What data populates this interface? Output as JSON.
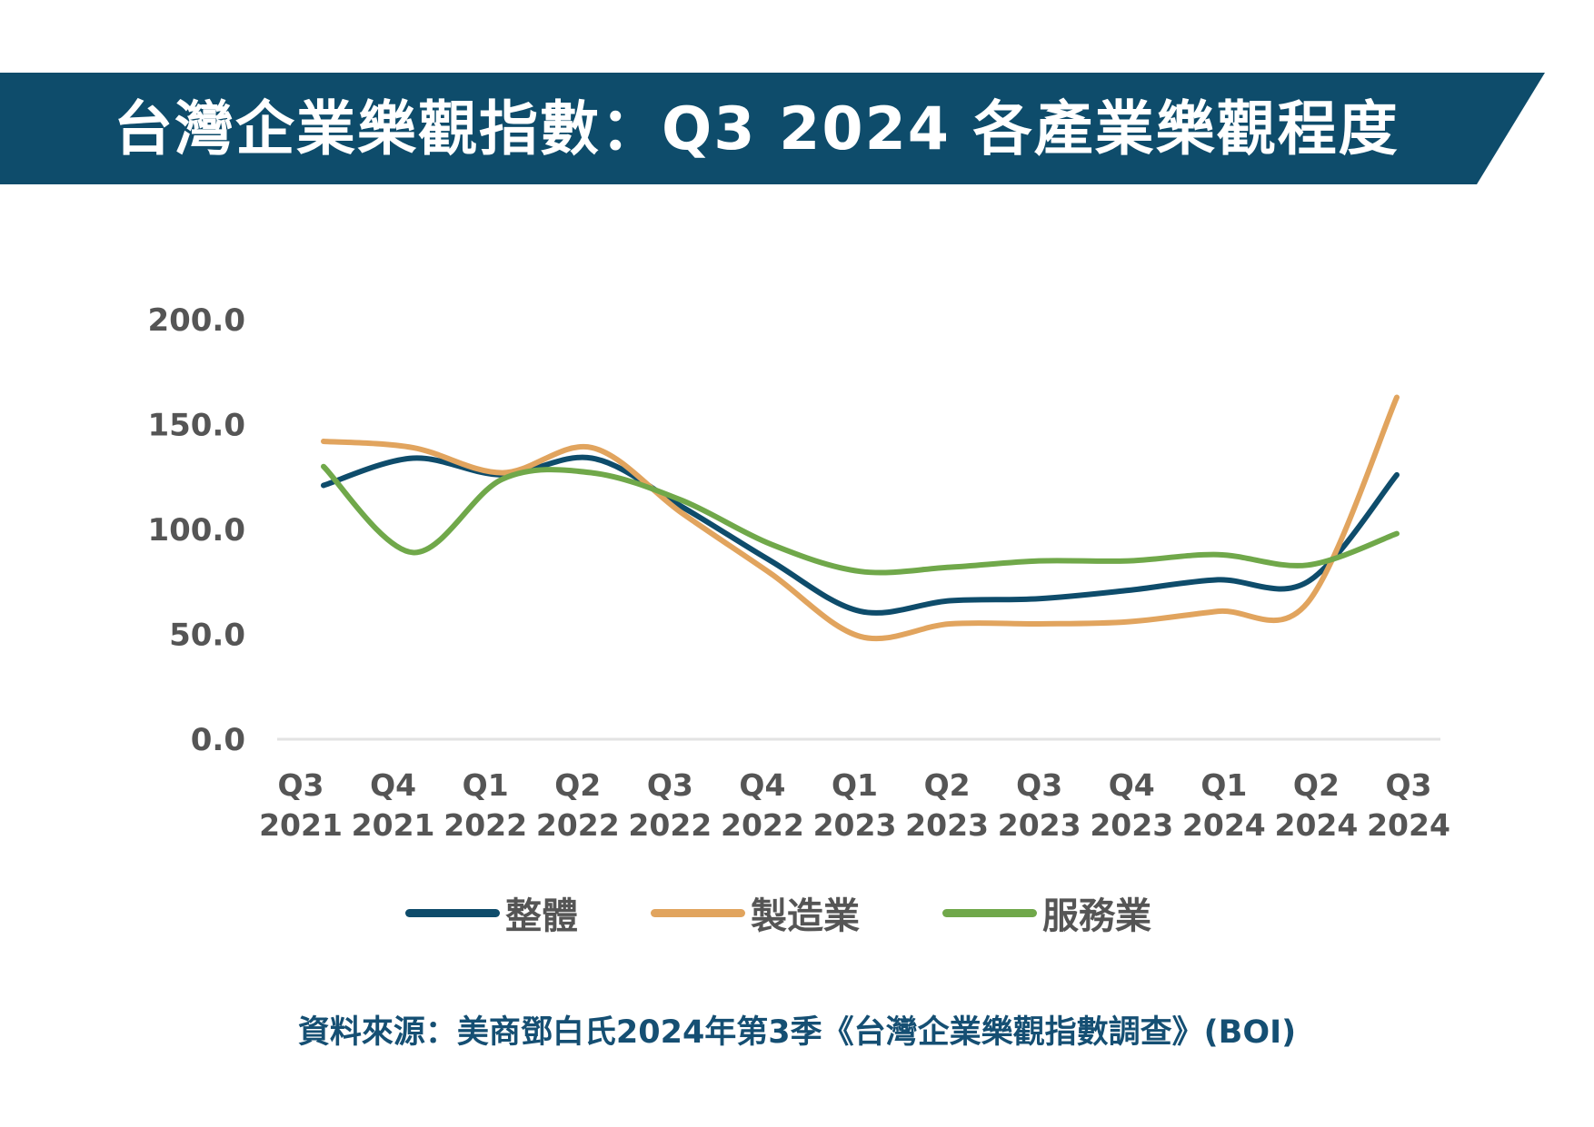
{
  "title": "台灣企業樂觀指數：Q3 2024 各產業樂觀程度",
  "source": "資料來源：美商鄧白氏2024年第3季《台灣企業樂觀指數調查》(BOI)",
  "colors": {
    "banner": "#0e4c6b",
    "overall": "#0e4c6b",
    "manufacturing": "#e1a45e",
    "services": "#70a84a",
    "axis": "#e3e3e3",
    "tick_text": "#555555",
    "source_text": "#154f73"
  },
  "chart_data": {
    "type": "line",
    "title": "台灣企業樂觀指數：Q3 2024 各產業樂觀程度",
    "categories": [
      [
        "Q3",
        "2021"
      ],
      [
        "Q4",
        "2021"
      ],
      [
        "Q1",
        "2022"
      ],
      [
        "Q2",
        "2022"
      ],
      [
        "Q3",
        "2022"
      ],
      [
        "Q4",
        "2022"
      ],
      [
        "Q1",
        "2023"
      ],
      [
        "Q2",
        "2023"
      ],
      [
        "Q3",
        "2023"
      ],
      [
        "Q4",
        "2023"
      ],
      [
        "Q1",
        "2024"
      ],
      [
        "Q2",
        "2024"
      ],
      [
        "Q3",
        "2024"
      ]
    ],
    "y_ticks": [
      "0.0",
      "50.0",
      "100.0",
      "150.0",
      "200.0"
    ],
    "ylim": [
      0,
      200
    ],
    "xlabel": "",
    "ylabel": "",
    "grid": false,
    "legend_position": "bottom",
    "smooth": true,
    "series": [
      {
        "name": "整體",
        "color_key": "overall",
        "values": [
          121,
          134,
          126,
          134,
          111,
          85,
          61,
          66,
          67,
          71,
          76,
          75,
          126
        ]
      },
      {
        "name": "製造業",
        "color_key": "manufacturing",
        "values": [
          142,
          139,
          127,
          139,
          108,
          79,
          49,
          55,
          55,
          56,
          61,
          65,
          163
        ]
      },
      {
        "name": "服務業",
        "color_key": "services",
        "values": [
          130,
          89,
          124,
          127,
          114,
          93,
          80,
          82,
          85,
          85,
          88,
          83,
          98
        ]
      }
    ]
  }
}
